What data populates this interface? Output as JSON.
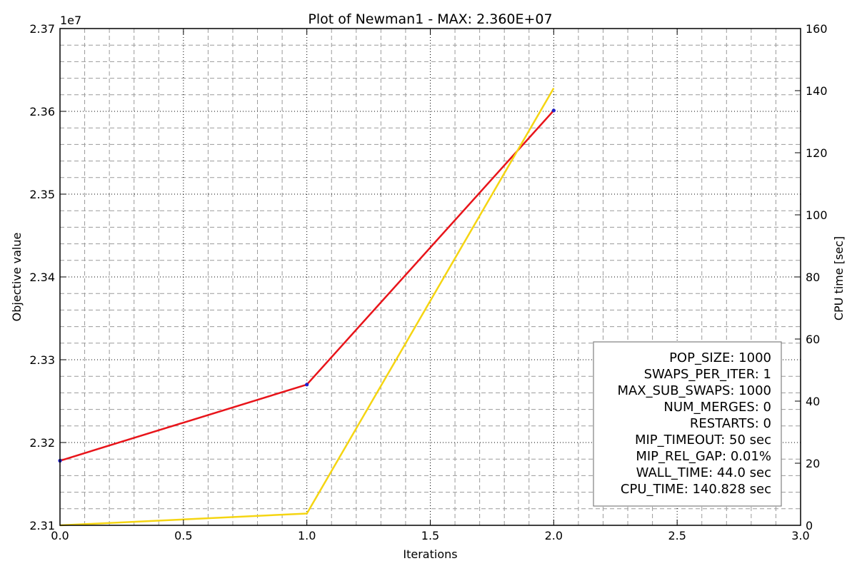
{
  "chart_data": {
    "type": "line",
    "title": "Plot of Newman1 - MAX: 2.360E+07",
    "xlabel": "Iterations",
    "ylabel": "Objective value",
    "y2label": "CPU time [sec]",
    "y_offset_label": "1e7",
    "xlim": [
      0.0,
      3.0
    ],
    "ylim": [
      2.31,
      2.37
    ],
    "y2lim": [
      0,
      160
    ],
    "x_ticks": [
      "0.0",
      "0.5",
      "1.0",
      "1.5",
      "2.0",
      "2.5",
      "3.0"
    ],
    "y_ticks": [
      "2.31",
      "2.32",
      "2.33",
      "2.34",
      "2.35",
      "2.36",
      "2.37"
    ],
    "y2_ticks": [
      "0",
      "20",
      "40",
      "60",
      "80",
      "100",
      "120",
      "140",
      "160"
    ],
    "grid": true,
    "series": [
      {
        "axis": "left",
        "color": "#e8141a",
        "marker_color": "#2222cc",
        "x": [
          0,
          1,
          2
        ],
        "y": [
          2.3178,
          2.327,
          2.3601
        ]
      },
      {
        "axis": "right",
        "color": "#f5d512",
        "x": [
          0,
          1,
          2
        ],
        "y": [
          0,
          3.8,
          140.8
        ]
      }
    ],
    "legend_position": "lower-right",
    "legend_lines": [
      "POP_SIZE: 1000",
      "SWAPS_PER_ITER: 1",
      "MAX_SUB_SWAPS: 1000",
      "NUM_MERGES: 0",
      "RESTARTS: 0",
      "MIP_TIMEOUT: 50 sec",
      "MIP_REL_GAP: 0.01%",
      "WALL_TIME: 44.0 sec",
      "CPU_TIME: 140.828 sec"
    ]
  }
}
